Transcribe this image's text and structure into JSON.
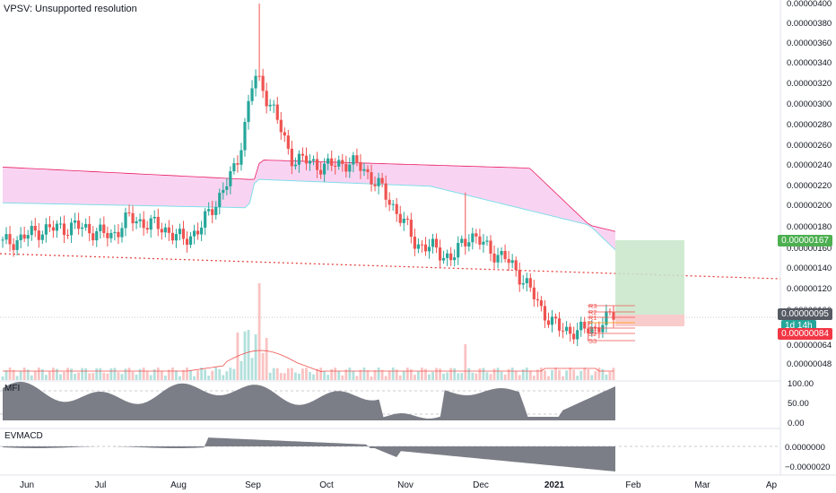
{
  "header": {
    "symbol_line": "VPSV: Unsupported resolution"
  },
  "colors": {
    "up": "#26a69a",
    "down": "#ef5350",
    "cloud_fill": "#f7c9ef",
    "long_zone": "#c8e6c9",
    "short_zone": "#f8c7c7",
    "trend_line": "#e53935",
    "price_tag": "#555a63",
    "target_tag": "#4caf50",
    "stop_tag": "#f23645",
    "panel_fill": "#7b7e86"
  },
  "chart_data": [
    {
      "type": "candlestick",
      "title": "VPSV",
      "y_axis": {
        "range": [
          3.6e-07,
          4e-07
        ],
        "ticks": [
          "0.00000400",
          "0.00000380",
          "0.00000360",
          "0.00000340",
          "0.00000320",
          "0.00000300",
          "0.00000280",
          "0.00000260",
          "0.00000240",
          "0.00000220",
          "0.00000200",
          "0.00000180",
          "0.00000160",
          "0.00000140",
          "0.00000120",
          "0.00000100",
          "0.00000064",
          "0.00000048"
        ]
      },
      "x_axis": {
        "ticks": [
          "Jun",
          "Jul",
          "Aug",
          "Sep",
          "Oct",
          "Nov",
          "Dec",
          "2021",
          "Feb",
          "Mar",
          "Ap"
        ]
      },
      "price_tags": {
        "target": "0.00000167",
        "current": "0.00000095",
        "countdown": "1d 14h",
        "stop": "0.00000084"
      },
      "pivot_labels": [
        "R3",
        "R2",
        "R1",
        "P",
        "S1",
        "S2",
        "S3"
      ],
      "close_path": [
        [
          "2020-05-25",
          165
        ],
        [
          "2020-06-01",
          170
        ],
        [
          "2020-06-08",
          178
        ],
        [
          "2020-06-15",
          180
        ],
        [
          "2020-06-22",
          182
        ],
        [
          "2020-06-29",
          178
        ],
        [
          "2020-07-06",
          172
        ],
        [
          "2020-07-13",
          190
        ],
        [
          "2020-07-20",
          185
        ],
        [
          "2020-07-27",
          180
        ],
        [
          "2020-08-03",
          168
        ],
        [
          "2020-08-10",
          180
        ],
        [
          "2020-08-17",
          210
        ],
        [
          "2020-08-24",
          240
        ],
        [
          "2020-08-31",
          330
        ],
        [
          "2020-09-07",
          300
        ],
        [
          "2020-09-14",
          250
        ],
        [
          "2020-09-21",
          245
        ],
        [
          "2020-09-28",
          240
        ],
        [
          "2020-10-05",
          245
        ],
        [
          "2020-10-12",
          240
        ],
        [
          "2020-10-19",
          220
        ],
        [
          "2020-10-26",
          195
        ],
        [
          "2020-11-02",
          165
        ],
        [
          "2020-11-09",
          160
        ],
        [
          "2020-11-16",
          150
        ],
        [
          "2020-11-23",
          175
        ],
        [
          "2020-11-30",
          160
        ],
        [
          "2020-12-07",
          150
        ],
        [
          "2020-12-14",
          130
        ],
        [
          "2020-12-21",
          100
        ],
        [
          "2020-12-28",
          80
        ],
        [
          "2021-01-04",
          78
        ],
        [
          "2021-01-11",
          82
        ],
        [
          "2021-01-18",
          95
        ]
      ]
    },
    {
      "type": "area",
      "title": "MFI",
      "y_axis": {
        "ticks": [
          "100.00",
          "50.00",
          "0.00"
        ]
      }
    },
    {
      "type": "area",
      "title": "EVMACD",
      "y_axis": {
        "ticks": [
          "0.0000000",
          "−0.0000020"
        ]
      }
    }
  ]
}
